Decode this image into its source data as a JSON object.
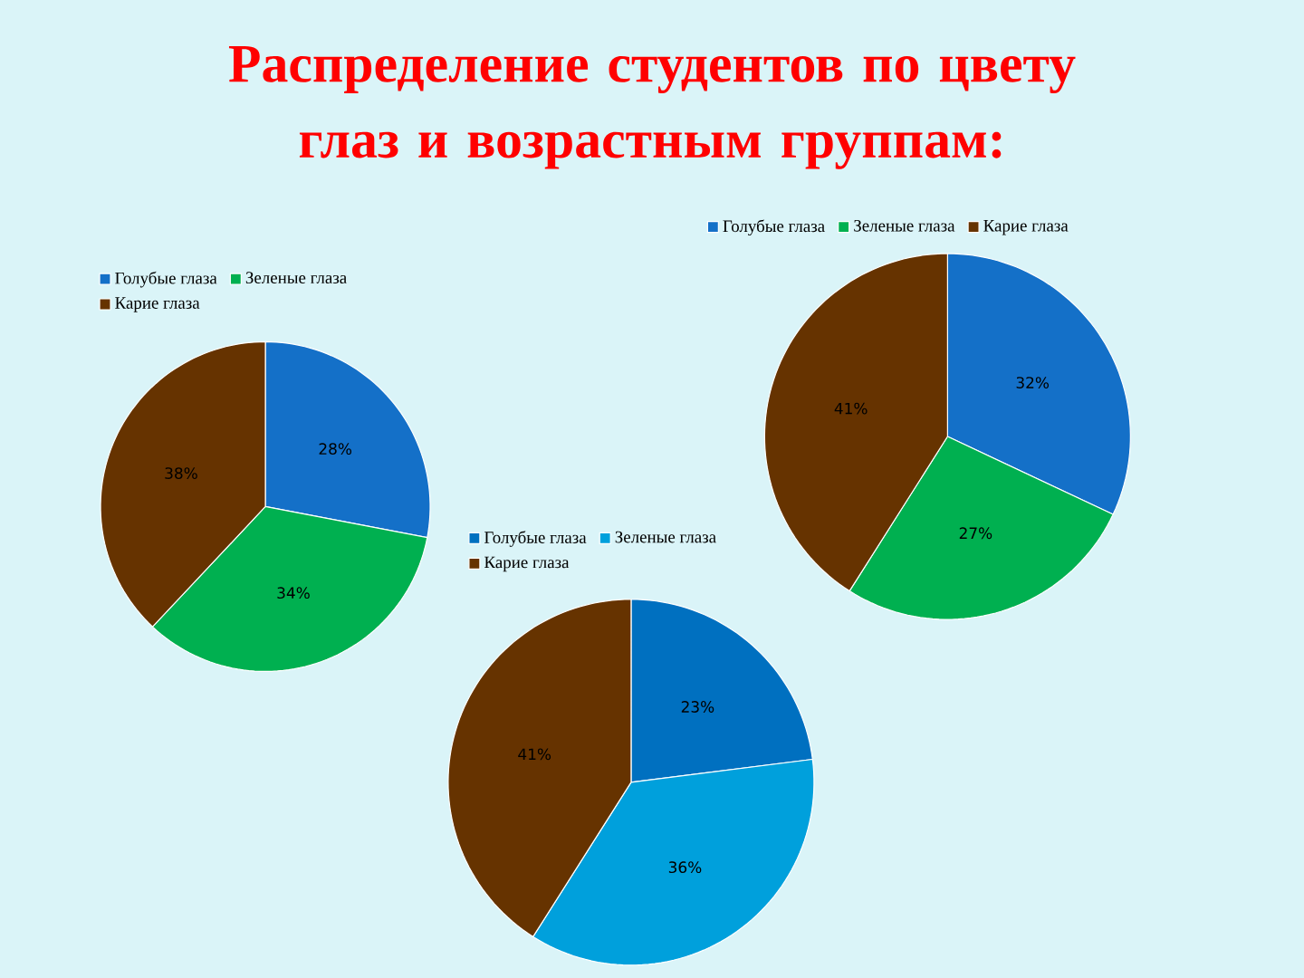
{
  "chart_data": [
    {
      "type": "pie",
      "title": "Распределение студентов по цвету глаз и возрастным группам:",
      "categories": [
        "Голубые глаза",
        "Зеленые глаза",
        "Карие глаза"
      ],
      "values": [
        28,
        34,
        38
      ],
      "colors": [
        "#1470c8",
        "#00b050",
        "#663300"
      ],
      "value_labels": [
        "28%",
        "34%",
        "38%"
      ],
      "legend": "top"
    },
    {
      "type": "pie",
      "categories": [
        "Голубые глаза",
        "Зеленые глаза",
        "Карие глаза"
      ],
      "values": [
        32,
        27,
        41
      ],
      "colors": [
        "#1470c8",
        "#00b050",
        "#663300"
      ],
      "value_labels": [
        "32%",
        "27%",
        "41%"
      ],
      "legend": "top"
    },
    {
      "type": "pie",
      "categories": [
        "Голубые глаза",
        "Зеленые глаза",
        "Карие глаза"
      ],
      "values": [
        23,
        36,
        41
      ],
      "colors": [
        "#0070c0",
        "#00a0dc",
        "#663300"
      ],
      "value_labels": [
        "23%",
        "36%",
        "41%"
      ],
      "legend": "top"
    }
  ]
}
